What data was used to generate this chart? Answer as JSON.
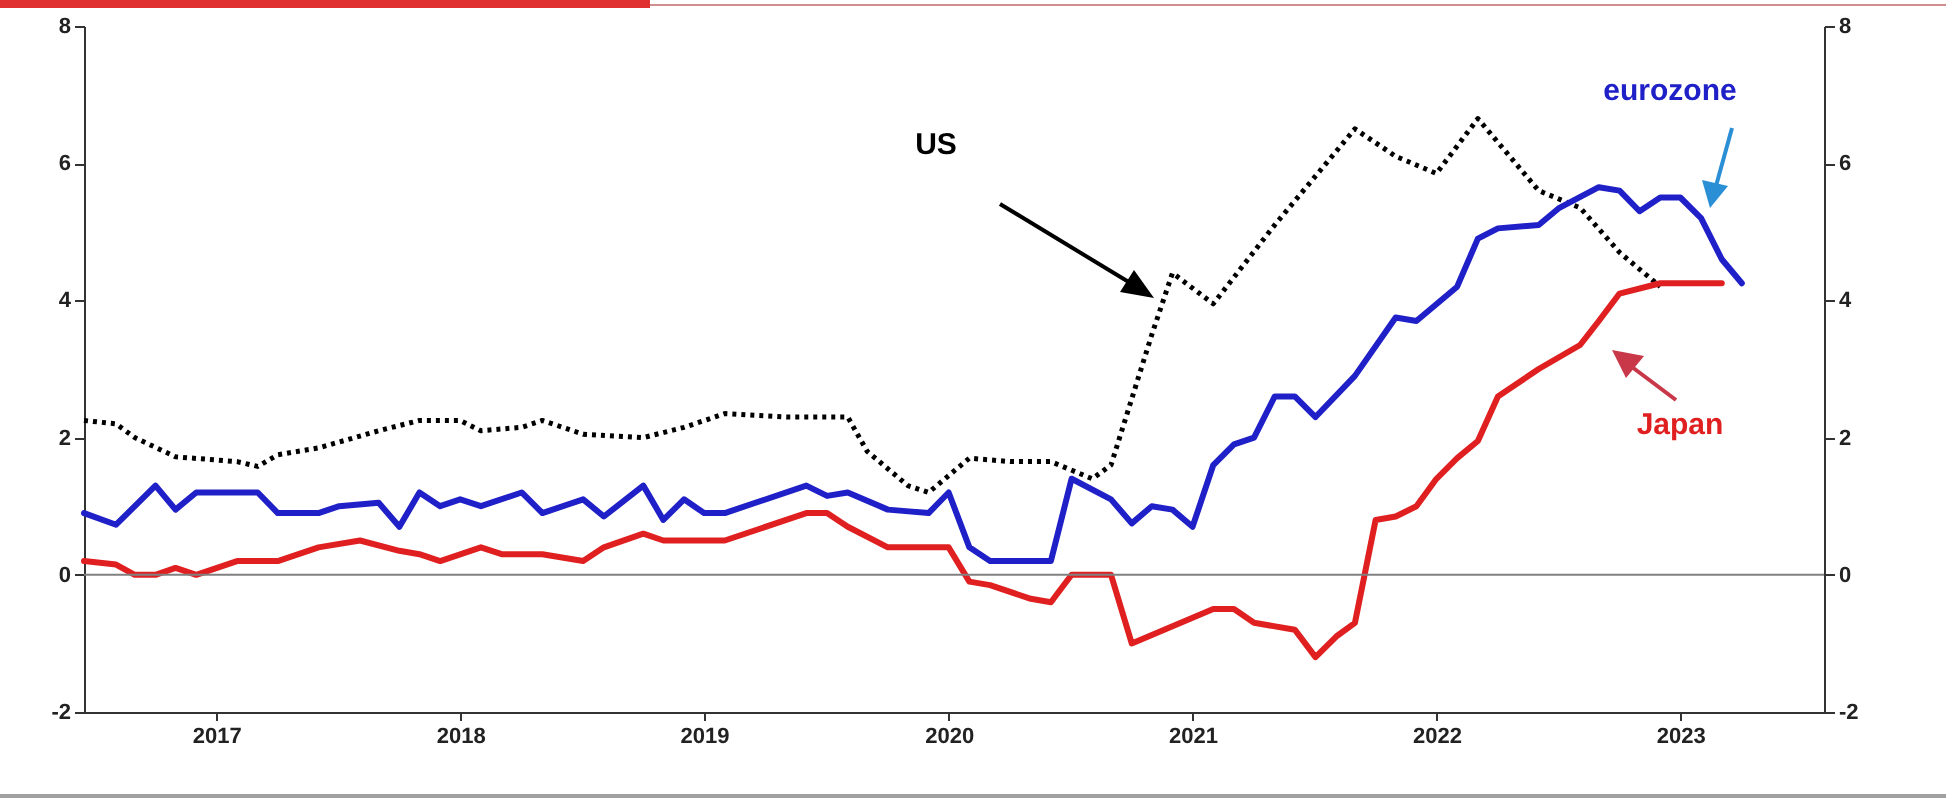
{
  "chart_data": {
    "type": "line",
    "xlim": [
      "2016-12-15",
      "2024-02-01"
    ],
    "xticks": [
      {
        "value": "2017-07-01",
        "label": "2017"
      },
      {
        "value": "2018-07-01",
        "label": "2018"
      },
      {
        "value": "2019-07-01",
        "label": "2019"
      },
      {
        "value": "2020-07-01",
        "label": "2020"
      },
      {
        "value": "2021-07-01",
        "label": "2021"
      },
      {
        "value": "2022-07-01",
        "label": "2022"
      },
      {
        "value": "2023-07-01",
        "label": "2023"
      }
    ],
    "ylim": [
      -2,
      8
    ],
    "yticks": [
      -2,
      0,
      2,
      4,
      6,
      8
    ],
    "y2lim": [
      -2,
      8
    ],
    "y2ticks": [
      -2,
      0,
      2,
      4,
      6,
      8
    ],
    "grid": false,
    "ref_lines": [
      {
        "axis": "y",
        "value": 0,
        "color": "#808080"
      }
    ],
    "series": [
      {
        "name": "US",
        "color": "#000000",
        "line_style": "dotted",
        "x": [
          "2016-12-15",
          "2017-02",
          "2017-03",
          "2017-05",
          "2017-08",
          "2017-09",
          "2017-10",
          "2017-12",
          "2018-03",
          "2018-05",
          "2018-07",
          "2018-08",
          "2018-10",
          "2018-11",
          "2019-01",
          "2019-04",
          "2019-06",
          "2019-08",
          "2019-11",
          "2020-02",
          "2020-03",
          "2020-05",
          "2020-06",
          "2020-08",
          "2020-10",
          "2020-12",
          "2021-02",
          "2021-03",
          "2021-05",
          "2021-06",
          "2021-08",
          "2021-11",
          "2022-03",
          "2022-05",
          "2022-07",
          "2022-09",
          "2022-12",
          "2023-02",
          "2023-04",
          "2023-06"
        ],
        "values": [
          2.25,
          2.2,
          2.0,
          1.72,
          1.65,
          1.58,
          1.75,
          1.85,
          2.1,
          2.25,
          2.25,
          2.1,
          2.15,
          2.25,
          2.05,
          2.0,
          2.15,
          2.35,
          2.3,
          2.3,
          1.8,
          1.3,
          1.2,
          1.7,
          1.65,
          1.65,
          1.4,
          1.6,
          3.5,
          4.4,
          3.95,
          5.1,
          6.5,
          6.1,
          5.85,
          6.65,
          5.6,
          5.35,
          4.7,
          4.2
        ]
      },
      {
        "name": "eurozone",
        "color": "#2020c8",
        "line_style": "solid",
        "x": [
          "2016-12-15",
          "2017-02",
          "2017-04",
          "2017-05",
          "2017-06",
          "2017-09",
          "2017-10",
          "2017-12",
          "2018-01",
          "2018-03",
          "2018-04",
          "2018-05",
          "2018-06",
          "2018-07",
          "2018-08",
          "2018-10",
          "2018-11",
          "2019-01",
          "2019-02",
          "2019-04",
          "2019-05",
          "2019-06",
          "2019-07",
          "2019-08",
          "2019-12",
          "2020-01",
          "2020-02",
          "2020-04",
          "2020-06",
          "2020-07",
          "2020-08",
          "2020-09",
          "2020-12",
          "2021-01",
          "2021-03",
          "2021-04",
          "2021-05",
          "2021-06",
          "2021-07",
          "2021-08",
          "2021-09",
          "2021-10",
          "2021-11",
          "2021-12",
          "2022-01",
          "2022-03",
          "2022-05",
          "2022-06",
          "2022-08",
          "2022-09",
          "2022-10",
          "2022-12",
          "2023-01",
          "2023-03",
          "2023-04",
          "2023-05",
          "2023-06",
          "2023-07",
          "2023-08",
          "2023-09",
          "2023-10"
        ],
        "values": [
          0.9,
          0.73,
          1.3,
          0.95,
          1.2,
          1.2,
          0.9,
          0.9,
          1.0,
          1.05,
          0.7,
          1.2,
          1.0,
          1.1,
          1.0,
          1.2,
          0.9,
          1.1,
          0.85,
          1.3,
          0.8,
          1.1,
          0.9,
          0.9,
          1.3,
          1.15,
          1.2,
          0.95,
          0.9,
          1.2,
          0.4,
          0.2,
          0.2,
          1.4,
          1.1,
          0.75,
          1.0,
          0.95,
          0.7,
          1.6,
          1.9,
          2.0,
          2.6,
          2.6,
          2.3,
          2.9,
          3.75,
          3.7,
          4.2,
          4.9,
          5.05,
          5.1,
          5.35,
          5.65,
          5.6,
          5.3,
          5.5,
          5.5,
          5.2,
          4.6,
          4.25
        ]
      },
      {
        "name": "Japan",
        "color": "#e02020",
        "line_style": "solid",
        "x": [
          "2016-12-15",
          "2017-02",
          "2017-03",
          "2017-04",
          "2017-05",
          "2017-06",
          "2017-08",
          "2017-10",
          "2017-11",
          "2017-12",
          "2018-02",
          "2018-04",
          "2018-05",
          "2018-06",
          "2018-08",
          "2018-09",
          "2018-11",
          "2019-01",
          "2019-02",
          "2019-04",
          "2019-05",
          "2019-08",
          "2019-12",
          "2020-01",
          "2020-02",
          "2020-04",
          "2020-07",
          "2020-08",
          "2020-09",
          "2020-11",
          "2020-12",
          "2021-01",
          "2021-03",
          "2021-04",
          "2021-06",
          "2021-08",
          "2021-09",
          "2021-10",
          "2021-12",
          "2022-01",
          "2022-02",
          "2022-03",
          "2022-04",
          "2022-05",
          "2022-06",
          "2022-07",
          "2022-08",
          "2022-09",
          "2022-10",
          "2022-12",
          "2023-02",
          "2023-03",
          "2023-04",
          "2023-06",
          "2023-09"
        ],
        "values": [
          0.2,
          0.15,
          0.0,
          0.0,
          0.1,
          0.0,
          0.2,
          0.2,
          0.3,
          0.4,
          0.5,
          0.35,
          0.3,
          0.2,
          0.4,
          0.3,
          0.3,
          0.2,
          0.4,
          0.6,
          0.5,
          0.5,
          0.9,
          0.9,
          0.7,
          0.4,
          0.4,
          -0.1,
          -0.15,
          -0.35,
          -0.4,
          0.0,
          0.0,
          -1.0,
          -0.75,
          -0.5,
          -0.5,
          -0.7,
          -0.8,
          -1.2,
          -0.9,
          -0.7,
          0.8,
          0.85,
          1.0,
          1.4,
          1.7,
          1.95,
          2.6,
          3.0,
          3.35,
          3.7,
          4.1,
          4.25,
          4.25
        ]
      }
    ]
  }
}
